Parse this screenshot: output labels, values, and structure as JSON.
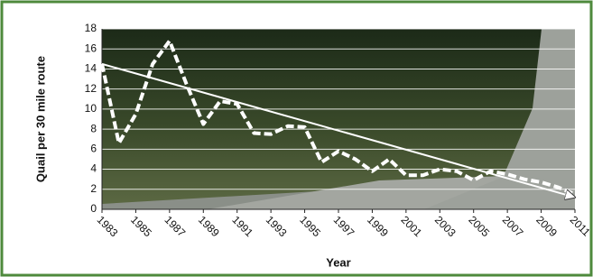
{
  "chart_data": {
    "type": "line",
    "x_label": "Year",
    "y_label": "Quail per 30 mile route",
    "x": [
      1983,
      1984,
      1985,
      1986,
      1987,
      1988,
      1989,
      1990,
      1991,
      1992,
      1993,
      1994,
      1995,
      1996,
      1997,
      1998,
      1999,
      2000,
      2001,
      2002,
      2003,
      2004,
      2005,
      2006,
      2007,
      2008,
      2009,
      2010,
      2011
    ],
    "values": [
      14.5,
      6.6,
      9.5,
      14.5,
      16.8,
      12.5,
      8.5,
      10.8,
      10.5,
      7.6,
      7.5,
      8.3,
      8.2,
      4.7,
      5.8,
      5.0,
      3.8,
      5.0,
      3.4,
      3.4,
      4.0,
      3.8,
      2.9,
      3.8,
      3.5,
      3.0,
      2.7,
      2.2,
      1.5
    ],
    "color": "#ffffff",
    "trend": {
      "x": [
        1983,
        2011
      ],
      "values": [
        14.5,
        1.2
      ]
    },
    "xlim": [
      1983,
      2011
    ],
    "xticks": [
      1983,
      1985,
      1987,
      1989,
      1991,
      1993,
      1995,
      1997,
      1999,
      2001,
      2003,
      2005,
      2007,
      2009,
      2011
    ],
    "ylim": [
      0,
      18
    ],
    "yticks": [
      0,
      2,
      4,
      6,
      8,
      10,
      12,
      14,
      16,
      18
    ],
    "grid": true
  }
}
